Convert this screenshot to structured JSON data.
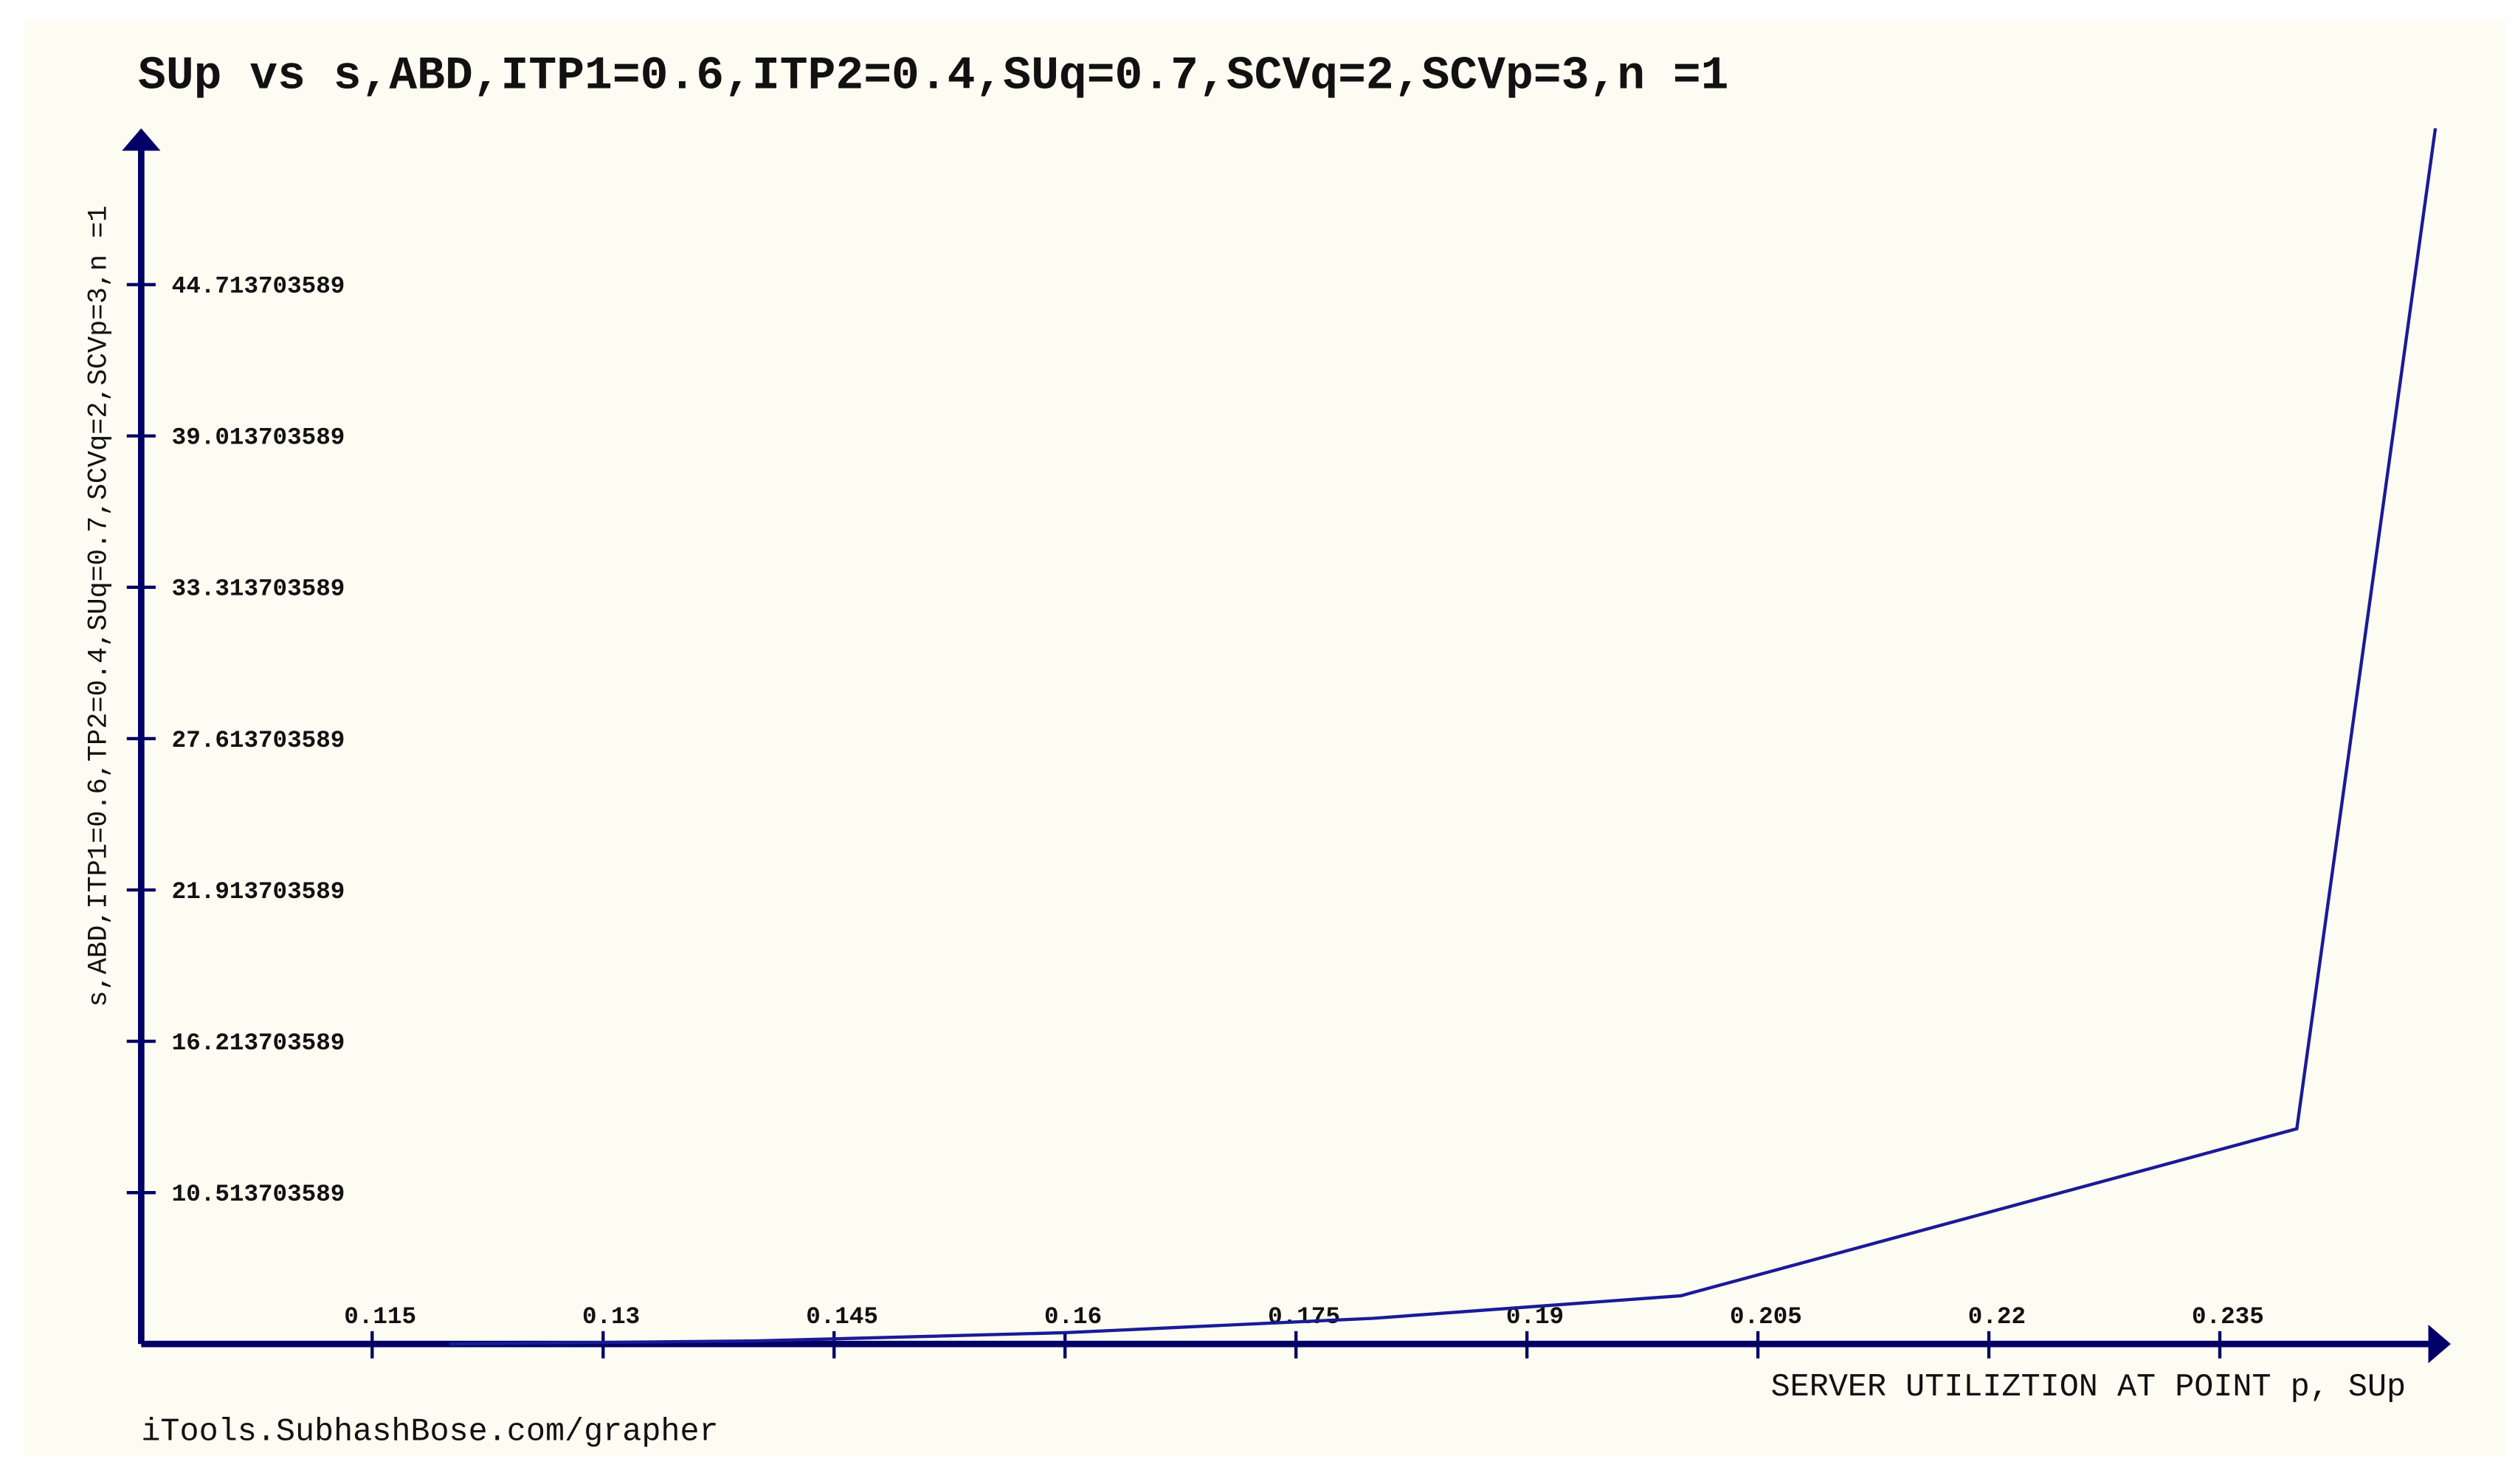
{
  "chart_data": {
    "type": "line",
    "title": "SUp vs s,ABD,ITP1=0.6,ITP2=0.4,SUq=0.7,SCVq=2,SCVp=3,n =1",
    "x_label": "SERVER UTILIZTION AT POINT p, SUp",
    "y_label": "s,ABD,ITP1=0.6,TP2=0.4,SUq=0.7,SCVq=2,SCVp=3,n =1",
    "footer": "iTools.SubhashBose.com/grapher",
    "x": [
      0.12,
      0.14,
      0.16,
      0.18,
      0.2,
      0.24,
      0.249
    ],
    "series": [
      {
        "name": "s,ABD",
        "color": "#1a1a99",
        "values": [
          4.813703589,
          4.93,
          5.24,
          5.78,
          6.63,
          12.92,
          50.6
        ]
      }
    ],
    "xlim": [
      0.1,
      0.25
    ],
    "xticks": [
      0.115,
      0.13,
      0.145,
      0.16,
      0.175,
      0.19,
      0.205,
      0.22,
      0.235
    ],
    "ylim": [
      4.813703589,
      50.6
    ],
    "yticks": [
      10.513703589,
      16.213703589,
      21.913703589,
      27.613703589,
      33.313703589,
      39.013703589,
      44.713703589
    ],
    "axis_color": "#000066"
  }
}
